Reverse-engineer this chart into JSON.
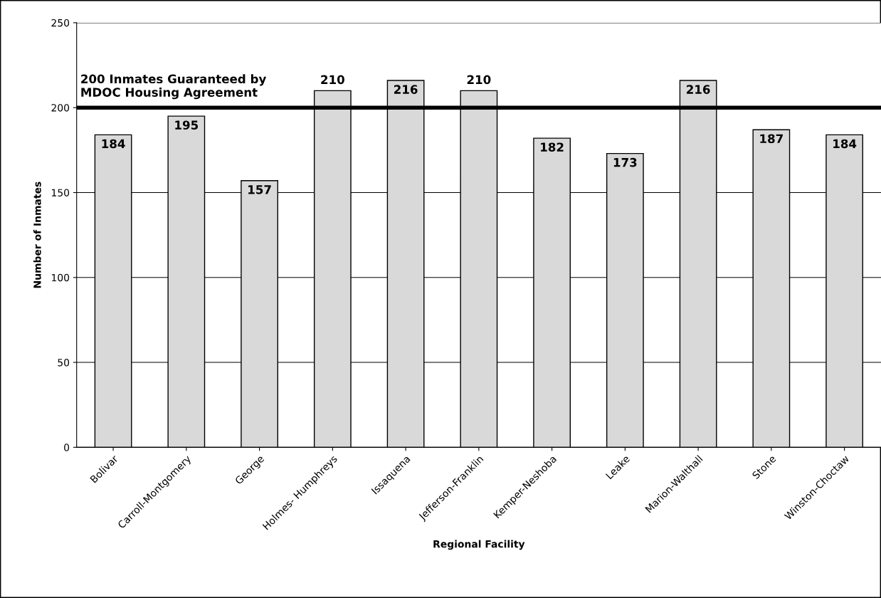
{
  "chart_data": {
    "type": "bar",
    "xlabel": "Regional Facility",
    "ylabel": "Number of Inmates",
    "categories": [
      "Bolivar",
      "Carroll-Montgomery",
      "George",
      "Holmes- Humphreys",
      "Issaquena",
      "Jefferson-Franklin",
      "Kemper-Neshoba",
      "Leake",
      "Marion-Walthall",
      "Stone",
      "Winston-Choctaw"
    ],
    "values": [
      184,
      195,
      157,
      210,
      216,
      210,
      182,
      173,
      216,
      187,
      184
    ],
    "color": "#d9d9d9",
    "ylim": [
      0,
      250
    ],
    "yticks": [
      0,
      50,
      100,
      150,
      200,
      250
    ],
    "grid": "y",
    "data_labels": true,
    "ref_lines": [
      {
        "axis": "y",
        "value": 200,
        "label": "200 Inmates Guaranteed by\nMDOC Housing Agreement",
        "color": "#000000"
      }
    ]
  }
}
